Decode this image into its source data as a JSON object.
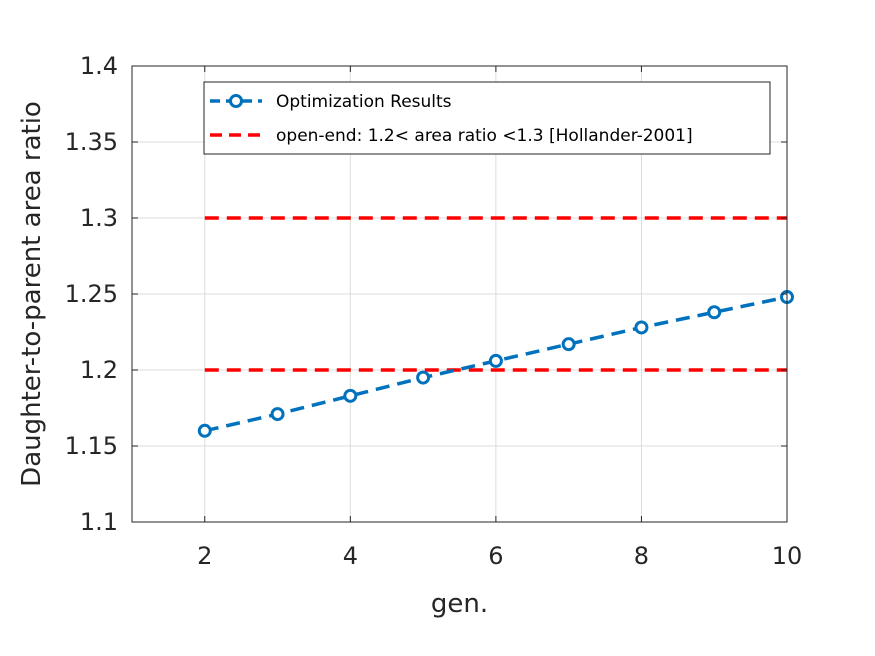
{
  "chart_data": {
    "type": "line",
    "title": "",
    "xlabel": "gen.",
    "ylabel": "Daughter-to-parent area ratio",
    "xlim": [
      1,
      10
    ],
    "ylim": [
      1.1,
      1.4
    ],
    "xticks": [
      2,
      4,
      6,
      8,
      10
    ],
    "yticks": [
      1.1,
      1.15,
      1.2,
      1.25,
      1.3,
      1.35,
      1.4
    ],
    "xtick_labels": [
      "2",
      "4",
      "6",
      "8",
      "10"
    ],
    "ytick_labels": [
      "1.1",
      "1.15",
      "1.2",
      "1.25",
      "1.3",
      "1.35",
      "1.4"
    ],
    "grid": true,
    "legend_position": "top-right",
    "series": [
      {
        "name": "Optimization Results",
        "color": "#0072BD",
        "line_style": "dashed",
        "marker": "circle",
        "x": [
          2,
          3,
          4,
          5,
          6,
          7,
          8,
          9,
          10
        ],
        "y": [
          1.16,
          1.171,
          1.183,
          1.195,
          1.206,
          1.217,
          1.228,
          1.238,
          1.248
        ]
      }
    ],
    "reference_lines": [
      {
        "name": "open-end: 1.2< area ratio <1.3 [Hollander-2001]",
        "color": "#FF0000",
        "line_style": "dashed",
        "values": [
          1.2,
          1.3
        ]
      }
    ]
  }
}
